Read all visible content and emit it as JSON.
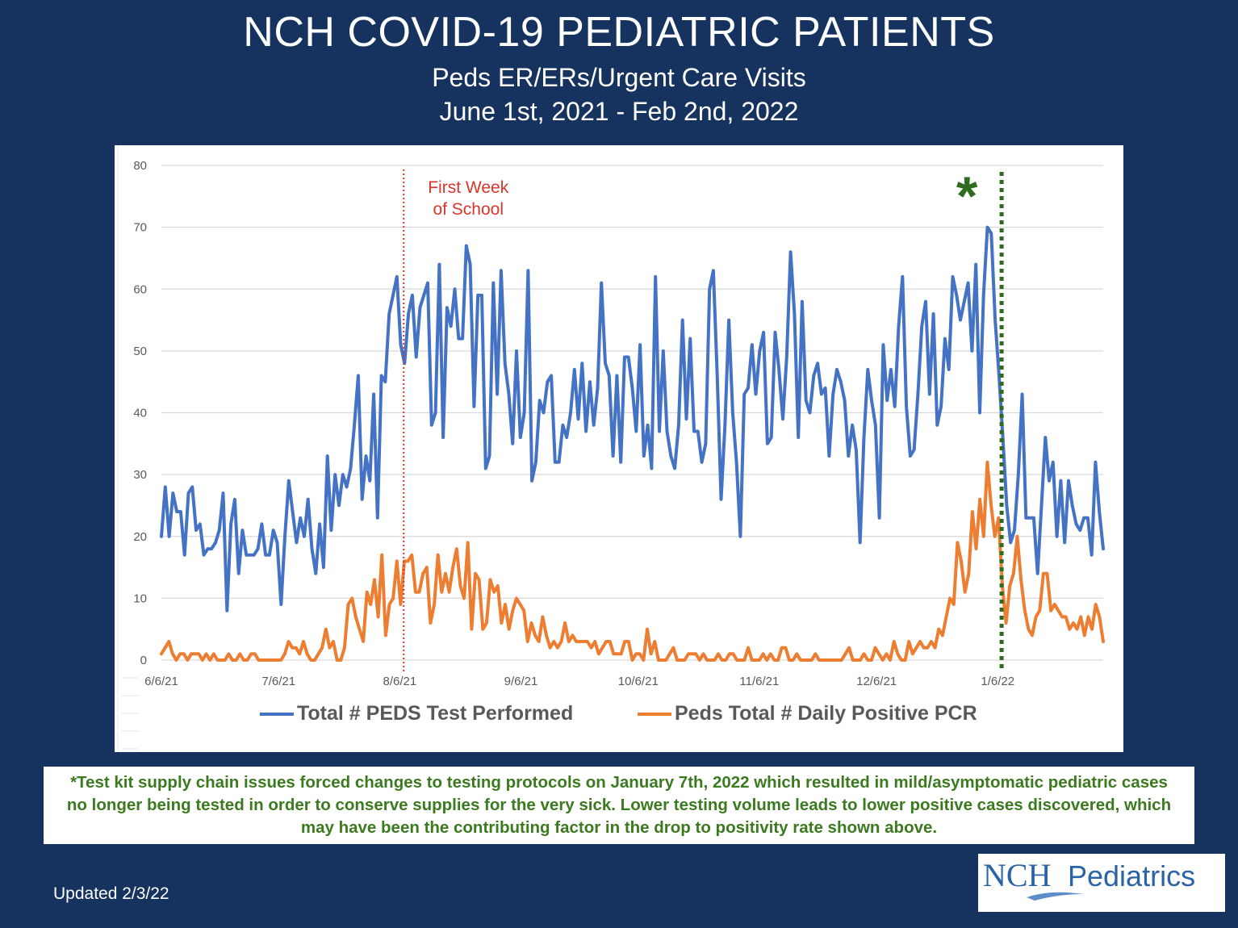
{
  "title": "NCH COVID-19 PEDIATRIC PATIENTS",
  "subtitle_line1": "Peds ER/ERs/Urgent Care Visits",
  "subtitle_line2": "June 1st, 2021 - Feb 2nd, 2022",
  "footnote": "*Test kit supply chain issues forced changes to testing protocols on January 7th, 2022 which resulted in mild/asymptomatic pediatric cases no longer being tested in order to conserve supplies for the very sick.  Lower testing volume leads to lower positive cases discovered, which may have been the contributing factor in the drop to positivity rate shown above.",
  "updated": "Updated 2/3/22",
  "logo": {
    "nch": "NCH",
    "pediatrics": "Pediatrics"
  },
  "colors": {
    "background": "#16335f",
    "tests": "#4472c4",
    "positives": "#ed7d31",
    "school_line": "#d9352a",
    "protocol_line": "#2e6b1f",
    "footnote_text": "#3b7a1f"
  },
  "chart_data": {
    "type": "line",
    "ylim": [
      0,
      80
    ],
    "yticks": [
      0,
      10,
      20,
      30,
      40,
      50,
      60,
      70,
      80
    ],
    "xlim": [
      "2021-06-06",
      "2022-02-02"
    ],
    "xticks": [
      "6/6/21",
      "7/6/21",
      "8/6/21",
      "9/6/21",
      "10/6/21",
      "11/6/21",
      "12/6/21",
      "1/6/22"
    ],
    "xtick_dates": [
      "2021-06-06",
      "2021-07-06",
      "2021-08-06",
      "2021-09-06",
      "2021-10-06",
      "2021-11-06",
      "2021-12-06",
      "2022-01-06"
    ],
    "grid": true,
    "legend_position": "bottom",
    "series": [
      {
        "name": "Total # PEDS Test Performed",
        "color": "#4472c4",
        "values": [
          20,
          28,
          20,
          27,
          24,
          24,
          17,
          27,
          28,
          21,
          22,
          17,
          18,
          18,
          19,
          21,
          27,
          8,
          22,
          26,
          14,
          21,
          17,
          17,
          17,
          18,
          22,
          17,
          17,
          21,
          19,
          9,
          20,
          29,
          24,
          19,
          23,
          20,
          26,
          18,
          14,
          22,
          15,
          33,
          21,
          30,
          25,
          30,
          28,
          31,
          38,
          46,
          26,
          33,
          29,
          43,
          23,
          46,
          45,
          56,
          59,
          62,
          51,
          48,
          56,
          59,
          49,
          57,
          59,
          61,
          38,
          40,
          64,
          36,
          57,
          54,
          60,
          52,
          52,
          67,
          64,
          41,
          59,
          59,
          31,
          33,
          61,
          43,
          63,
          48,
          43,
          35,
          50,
          36,
          40,
          63,
          29,
          32,
          42,
          40,
          45,
          46,
          32,
          32,
          38,
          36,
          40,
          47,
          39,
          48,
          37,
          45,
          38,
          44,
          61,
          48,
          46,
          33,
          46,
          32,
          49,
          49,
          44,
          37,
          51,
          33,
          38,
          31,
          62,
          37,
          50,
          37,
          33,
          31,
          38,
          55,
          39,
          52,
          37,
          37,
          32,
          35,
          60,
          63,
          46,
          26,
          38,
          55,
          40,
          32,
          20,
          43,
          44,
          51,
          43,
          50,
          53,
          35,
          36,
          53,
          47,
          39,
          49,
          66,
          56,
          36,
          58,
          42,
          40,
          46,
          48,
          43,
          44,
          33,
          43,
          47,
          45,
          42,
          33,
          38,
          34,
          19,
          36,
          47,
          42,
          38,
          23,
          51,
          42,
          47,
          41,
          54,
          62,
          41,
          33,
          34,
          43,
          54,
          58,
          43,
          56,
          38,
          41,
          52,
          47,
          62,
          59,
          55,
          58,
          61,
          50,
          64,
          40,
          59,
          70,
          69,
          55,
          46,
          36,
          25,
          19,
          21,
          30,
          43,
          23,
          23,
          23,
          14,
          25,
          36,
          29,
          32,
          20,
          29,
          19,
          29,
          25,
          22,
          21,
          23,
          23,
          17,
          32,
          24,
          18
        ]
      },
      {
        "name": "Peds Total # Daily Positive PCR",
        "color": "#ed7d31",
        "values": [
          1,
          2,
          3,
          1,
          0,
          1,
          1,
          0,
          1,
          1,
          1,
          0,
          1,
          0,
          1,
          0,
          0,
          0,
          1,
          0,
          0,
          1,
          0,
          0,
          1,
          1,
          0,
          0,
          0,
          0,
          0,
          0,
          0,
          1,
          3,
          2,
          2,
          1,
          3,
          1,
          0,
          0,
          1,
          2,
          5,
          2,
          3,
          0,
          0,
          2,
          9,
          10,
          7,
          5,
          3,
          11,
          9,
          13,
          7,
          17,
          4,
          9,
          10,
          16,
          9,
          16,
          16,
          17,
          11,
          11,
          14,
          15,
          6,
          9,
          17,
          11,
          14,
          11,
          15,
          18,
          12,
          10,
          19,
          5,
          14,
          13,
          5,
          6,
          13,
          11,
          12,
          6,
          9,
          5,
          8,
          10,
          9,
          8,
          3,
          6,
          4,
          3,
          7,
          4,
          2,
          3,
          2,
          3,
          6,
          3,
          4,
          3,
          3,
          3,
          3,
          2,
          3,
          1,
          2,
          3,
          3,
          1,
          1,
          1,
          3,
          3,
          0,
          1,
          1,
          0,
          5,
          1,
          3,
          0,
          0,
          0,
          1,
          2,
          0,
          0,
          0,
          1,
          1,
          1,
          0,
          1,
          0,
          0,
          0,
          1,
          0,
          0,
          1,
          1,
          0,
          0,
          0,
          2,
          0,
          0,
          0,
          1,
          0,
          1,
          0,
          0,
          2,
          2,
          0,
          0,
          1,
          0,
          0,
          0,
          0,
          1,
          0,
          0,
          0,
          0,
          0,
          0,
          0,
          1,
          2,
          0,
          0,
          0,
          1,
          0,
          0,
          2,
          1,
          0,
          1,
          0,
          3,
          1,
          0,
          0,
          3,
          1,
          2,
          3,
          2,
          2,
          3,
          2,
          5,
          4,
          7,
          10,
          9,
          19,
          16,
          11,
          14,
          24,
          18,
          26,
          20,
          32,
          25,
          20,
          23,
          12,
          6,
          12,
          14,
          20,
          13,
          8,
          5,
          4,
          7,
          8,
          14,
          14,
          8,
          9,
          8,
          7,
          7,
          5,
          6,
          5,
          7,
          4,
          7,
          5,
          9,
          7,
          3
        ]
      }
    ],
    "annotations": [
      {
        "date": "2021-08-07",
        "label_line1": "First Week",
        "label_line2": "of School",
        "style": "dotted",
        "color": "#d9352a"
      },
      {
        "date": "2022-01-07",
        "label_line1": "*",
        "label_line2": "",
        "style": "dotted",
        "color": "#2e6b1f"
      }
    ]
  }
}
